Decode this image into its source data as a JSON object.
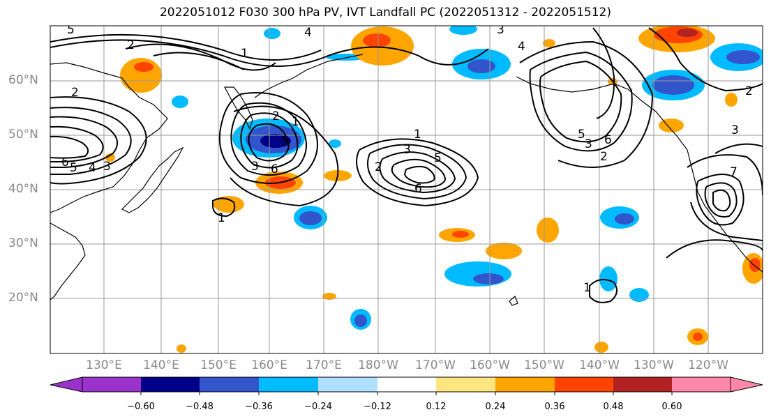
{
  "title": "2022051012 F030 300 hPa PV, IVT Landfall PC (2022051312 - 2022051512)",
  "lat_labels": [
    "60°N",
    "50°N",
    "40°N",
    "30°N",
    "20°N"
  ],
  "lon_labels": [
    "130°E",
    "140°E",
    "150°E",
    "160°E",
    "170°E",
    "180°W",
    "170°W",
    "160°W",
    "150°W",
    "140°W",
    "130°W",
    "120°W"
  ],
  "colorbar": {
    "tick_labels": [
      "−0.60",
      "−0.48",
      "−0.36",
      "−0.24",
      "−0.12",
      "0.12",
      "0.24",
      "0.36",
      "0.48",
      "0.60"
    ],
    "colors": [
      "#9933cc",
      "#000088",
      "#3355cc",
      "#00bbff",
      "#b0e0ff",
      "#ffffff",
      "#ffe680",
      "#ffa500",
      "#ff4400",
      "#b22222",
      "#ff88aa"
    ]
  },
  "contour_labels": [
    "5",
    "4",
    "3",
    "2",
    "1",
    "6",
    "2",
    "5",
    "4",
    "3",
    "2",
    "1",
    "5",
    "3",
    "6",
    "1",
    "2",
    "3",
    "5",
    "6",
    "1",
    "4",
    "3",
    "2",
    "1",
    "6",
    "5",
    "3",
    "2",
    "7"
  ]
}
